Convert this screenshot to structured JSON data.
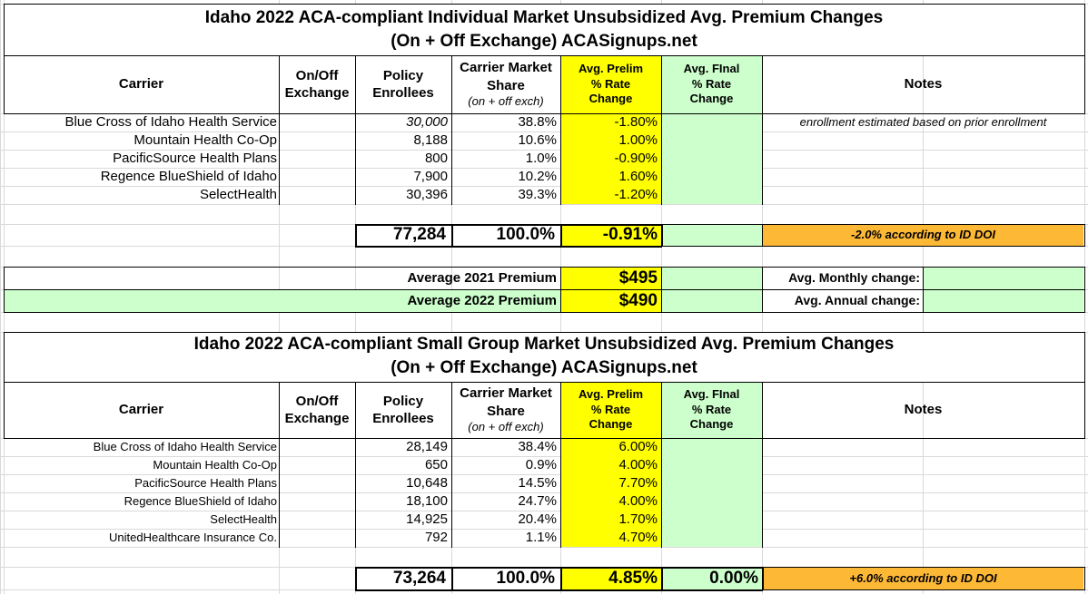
{
  "colors": {
    "yellow": "#ffff00",
    "light_green": "#ccffcc",
    "orange": "#fdb936",
    "gridline": "#d9d9d9",
    "border": "#000000"
  },
  "individual": {
    "title_line1": "Idaho 2022 ACA-compliant Individual Market Unsubsidized Avg. Premium Changes",
    "title_line2": "(On + Off Exchange) ACASignups.net",
    "headers": {
      "carrier": "Carrier",
      "onoff_1": "On/Off",
      "onoff_2": "Exchange",
      "enrollees_1": "Policy",
      "enrollees_2": "Enrollees",
      "share_1": "Carrier Market",
      "share_2": "Share",
      "share_3": "(on + off exch)",
      "prelim_1": "Avg. Prelim",
      "prelim_2": "% Rate",
      "prelim_3": "Change",
      "final_1": "Avg. FInal",
      "final_2": "% Rate",
      "final_3": "Change",
      "notes": "Notes"
    },
    "rows": [
      {
        "carrier": "Blue Cross of Idaho Health Service",
        "enrollees": "30,000",
        "share": "38.8%",
        "prelim": "-1.80%",
        "notes": "enrollment estimated based on prior enrollment"
      },
      {
        "carrier": "Mountain Health Co-Op",
        "enrollees": "8,188",
        "share": "10.6%",
        "prelim": "1.00%",
        "notes": ""
      },
      {
        "carrier": "PacificSource Health Plans",
        "enrollees": "800",
        "share": "1.0%",
        "prelim": "-0.90%",
        "notes": ""
      },
      {
        "carrier": "Regence BlueShield of Idaho",
        "enrollees": "7,900",
        "share": "10.2%",
        "prelim": "1.60%",
        "notes": ""
      },
      {
        "carrier": "SelectHealth",
        "enrollees": "30,396",
        "share": "39.3%",
        "prelim": "-1.20%",
        "notes": ""
      }
    ],
    "totals": {
      "enrollees": "77,284",
      "share": "100.0%",
      "prelim": "-0.91%",
      "final": "",
      "doi_note": "-2.0% according to ID DOI"
    },
    "premiums": {
      "label_2021": "Average 2021 Premium",
      "value_2021": "$495",
      "label_2022": "Average 2022 Premium",
      "value_2022": "$490",
      "monthly_label": "Avg. Monthly change:",
      "annual_label": "Avg. Annual change:"
    }
  },
  "small_group": {
    "title_line1": "Idaho 2022 ACA-compliant Small Group Market Unsubsidized Avg. Premium Changes",
    "title_line2": "(On + Off Exchange) ACASignups.net",
    "rows": [
      {
        "carrier": "Blue Cross of Idaho Health Service",
        "enrollees": "28,149",
        "share": "38.4%",
        "prelim": "6.00%"
      },
      {
        "carrier": "Mountain Health Co-Op",
        "enrollees": "650",
        "share": "0.9%",
        "prelim": "4.00%"
      },
      {
        "carrier": "PacificSource Health Plans",
        "enrollees": "10,648",
        "share": "14.5%",
        "prelim": "7.70%"
      },
      {
        "carrier": "Regence BlueShield of Idaho",
        "enrollees": "18,100",
        "share": "24.7%",
        "prelim": "4.00%"
      },
      {
        "carrier": "SelectHealth",
        "enrollees": "14,925",
        "share": "20.4%",
        "prelim": "1.70%"
      },
      {
        "carrier": "UnitedHealthcare Insurance Co.",
        "enrollees": "792",
        "share": "1.1%",
        "prelim": "4.70%"
      }
    ],
    "totals": {
      "enrollees": "73,264",
      "share": "100.0%",
      "prelim": "4.85%",
      "final": "0.00%",
      "doi_note": "+6.0% according to ID DOI"
    }
  }
}
